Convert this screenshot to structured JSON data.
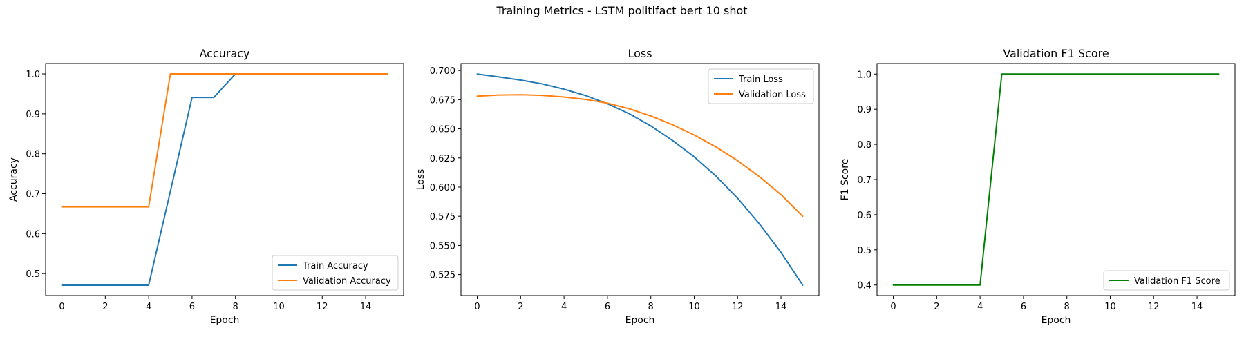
{
  "figure": {
    "suptitle": "Training Metrics - LSTM politifact bert 10 shot"
  },
  "chart_data": [
    {
      "type": "line",
      "title": "Accuracy",
      "xlabel": "Epoch",
      "ylabel": "Accuracy",
      "x": [
        0,
        1,
        2,
        3,
        4,
        5,
        6,
        7,
        8,
        9,
        10,
        11,
        12,
        13,
        14,
        15
      ],
      "xlim": [
        -0.75,
        15.75
      ],
      "ylim": [
        0.445,
        1.026
      ],
      "xticks": [
        0,
        2,
        4,
        6,
        8,
        10,
        12,
        14
      ],
      "yticks": [
        0.5,
        0.6,
        0.7,
        0.8,
        0.9,
        1.0
      ],
      "ytick_labels": [
        "0.5",
        "0.6",
        "0.7",
        "0.8",
        "0.9",
        "1.0"
      ],
      "legend_position": "lower-right",
      "grid": false,
      "series": [
        {
          "name": "Train Accuracy",
          "color": "#1f77b4",
          "values": [
            0.471,
            0.471,
            0.471,
            0.471,
            0.471,
            0.706,
            0.941,
            0.941,
            1.0,
            1.0,
            1.0,
            1.0,
            1.0,
            1.0,
            1.0,
            1.0
          ]
        },
        {
          "name": "Validation Accuracy",
          "color": "#ff7f0e",
          "values": [
            0.667,
            0.667,
            0.667,
            0.667,
            0.667,
            1.0,
            1.0,
            1.0,
            1.0,
            1.0,
            1.0,
            1.0,
            1.0,
            1.0,
            1.0,
            1.0
          ]
        }
      ]
    },
    {
      "type": "line",
      "title": "Loss",
      "xlabel": "Epoch",
      "ylabel": "Loss",
      "x": [
        0,
        1,
        2,
        3,
        4,
        5,
        6,
        7,
        8,
        9,
        10,
        11,
        12,
        13,
        14,
        15
      ],
      "xlim": [
        -0.75,
        15.75
      ],
      "ylim": [
        0.507,
        0.706
      ],
      "xticks": [
        0,
        2,
        4,
        6,
        8,
        10,
        12,
        14
      ],
      "yticks": [
        0.525,
        0.55,
        0.575,
        0.6,
        0.625,
        0.65,
        0.675,
        0.7
      ],
      "ytick_labels": [
        "0.525",
        "0.550",
        "0.575",
        "0.600",
        "0.625",
        "0.650",
        "0.675",
        "0.700"
      ],
      "legend_position": "upper-right",
      "grid": false,
      "series": [
        {
          "name": "Train Loss",
          "color": "#1f77b4",
          "values": [
            0.697,
            0.6945,
            0.6918,
            0.6885,
            0.684,
            0.6785,
            0.6715,
            0.663,
            0.6525,
            0.64,
            0.626,
            0.6095,
            0.5905,
            0.5685,
            0.544,
            0.516
          ]
        },
        {
          "name": "Validation Loss",
          "color": "#ff7f0e",
          "values": [
            0.678,
            0.679,
            0.6792,
            0.6787,
            0.6773,
            0.6752,
            0.672,
            0.6672,
            0.661,
            0.6535,
            0.6447,
            0.6345,
            0.6227,
            0.609,
            0.5935,
            0.575
          ]
        }
      ]
    },
    {
      "type": "line",
      "title": "Validation F1 Score",
      "xlabel": "Epoch",
      "ylabel": "F1 Score",
      "x": [
        0,
        1,
        2,
        3,
        4,
        5,
        6,
        7,
        8,
        9,
        10,
        11,
        12,
        13,
        14,
        15
      ],
      "xlim": [
        -0.75,
        15.75
      ],
      "ylim": [
        0.37,
        1.03
      ],
      "xticks": [
        0,
        2,
        4,
        6,
        8,
        10,
        12,
        14
      ],
      "yticks": [
        0.4,
        0.5,
        0.6,
        0.7,
        0.8,
        0.9,
        1.0
      ],
      "ytick_labels": [
        "0.4",
        "0.5",
        "0.6",
        "0.7",
        "0.8",
        "0.9",
        "1.0"
      ],
      "legend_position": "lower-right",
      "grid": false,
      "series": [
        {
          "name": "Validation F1 Score",
          "color": "#008000",
          "values": [
            0.4,
            0.4,
            0.4,
            0.4,
            0.4,
            1.0,
            1.0,
            1.0,
            1.0,
            1.0,
            1.0,
            1.0,
            1.0,
            1.0,
            1.0,
            1.0
          ]
        }
      ]
    }
  ]
}
